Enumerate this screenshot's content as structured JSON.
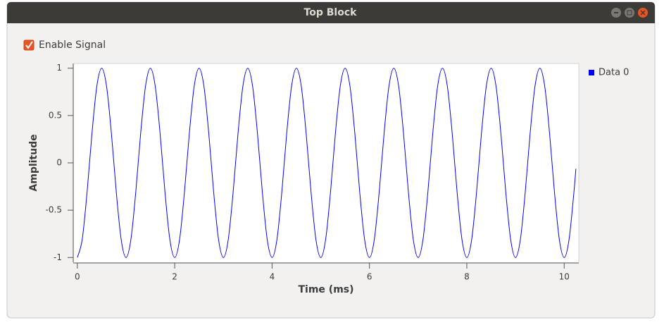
{
  "window": {
    "title": "Top Block"
  },
  "controls": {
    "checkbox": {
      "label": "Enable Signal",
      "checked": true
    }
  },
  "chart_data": {
    "type": "line",
    "xlabel": "Time (ms)",
    "ylabel": "Amplitude",
    "x": [
      0,
      0.1,
      0.2,
      0.3,
      0.4,
      0.5,
      0.6,
      0.7,
      0.8,
      0.9,
      1,
      1.1,
      1.2,
      1.3,
      1.4,
      1.5,
      1.6,
      1.7,
      1.8,
      1.9,
      2,
      2.1,
      2.2,
      2.3,
      2.4,
      2.5,
      2.6,
      2.7,
      2.8,
      2.9,
      3,
      3.1,
      3.2,
      3.3,
      3.4,
      3.5,
      3.6,
      3.7,
      3.8,
      3.9,
      4,
      4.1,
      4.2,
      4.3,
      4.4,
      4.5,
      4.6,
      4.7,
      4.8,
      4.9,
      5,
      5.1,
      5.2,
      5.3,
      5.4,
      5.5,
      5.6,
      5.7,
      5.8,
      5.9,
      6,
      6.1,
      6.2,
      6.3,
      6.4,
      6.5,
      6.6,
      6.7,
      6.8,
      6.9,
      7,
      7.1,
      7.2,
      7.3,
      7.4,
      7.5,
      7.6,
      7.7,
      7.8,
      7.9,
      8,
      8.1,
      8.2,
      8.3,
      8.4,
      8.5,
      8.6,
      8.7,
      8.8,
      8.9,
      9,
      9.1,
      9.2,
      9.3,
      9.4,
      9.5,
      9.6,
      9.7,
      9.8,
      9.9,
      10,
      10.1,
      10.2,
      10.24
    ],
    "series": [
      {
        "name": "Data 0",
        "color": "#0000ff",
        "values": [
          -1,
          -0.809,
          -0.309,
          0.309,
          0.809,
          1,
          0.809,
          0.309,
          -0.309,
          -0.809,
          -1,
          -0.809,
          -0.309,
          0.309,
          0.809,
          1,
          0.809,
          0.309,
          -0.309,
          -0.809,
          -1,
          -0.809,
          -0.309,
          0.309,
          0.809,
          1,
          0.809,
          0.309,
          -0.309,
          -0.809,
          -1,
          -0.809,
          -0.309,
          0.309,
          0.809,
          1,
          0.809,
          0.309,
          -0.309,
          -0.809,
          -1,
          -0.809,
          -0.309,
          0.309,
          0.809,
          1,
          0.809,
          0.309,
          -0.309,
          -0.809,
          -1,
          -0.809,
          -0.309,
          0.309,
          0.809,
          1,
          0.809,
          0.309,
          -0.309,
          -0.809,
          -1,
          -0.809,
          -0.309,
          0.309,
          0.809,
          1,
          0.809,
          0.309,
          -0.309,
          -0.809,
          -1,
          -0.809,
          -0.309,
          0.309,
          0.809,
          1,
          0.809,
          0.309,
          -0.309,
          -0.809,
          -1,
          -0.809,
          -0.309,
          0.309,
          0.809,
          1,
          0.809,
          0.309,
          -0.309,
          -0.809,
          -1,
          -0.809,
          -0.309,
          0.309,
          0.809,
          1,
          0.809,
          0.309,
          -0.309,
          -0.809,
          -1,
          -0.809,
          -0.309,
          -0.063
        ]
      }
    ],
    "xlim": [
      -0.07,
      10.3
    ],
    "ylim": [
      -1.05,
      1.05
    ],
    "xticks": [
      0,
      2,
      4,
      6,
      8,
      10
    ],
    "yticks": [
      -1,
      -0.5,
      0,
      0.5,
      1
    ],
    "legend": "right"
  }
}
